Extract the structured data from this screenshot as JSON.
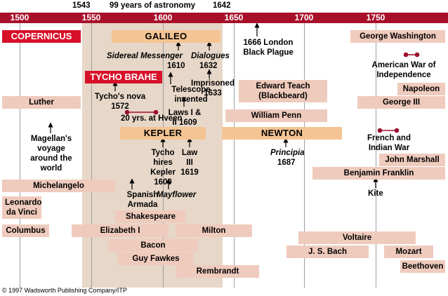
{
  "header": {
    "years": [
      "1500",
      "1550",
      "1600",
      "1650",
      "1700",
      "1750"
    ],
    "span_start": "1543",
    "span_label": "99 years of astronomy",
    "span_end": "1642"
  },
  "bars": {
    "copernicus": "COPERNICUS",
    "galileo": "GALILEO",
    "tycho_brahe": "TYCHO BRAHE",
    "kepler": "KEPLER",
    "newton": "NEWTON",
    "george_washington": "George Washington",
    "luther": "Luther",
    "edward_teach": "Edward Teach (Blackbeard)",
    "napoleon": "Napoleon",
    "george_iii": "George III",
    "william_penn": "William Penn",
    "john_marshall": "John Marshall",
    "benjamin_franklin": "Benjamin Franklin",
    "michelangelo": "Michelangelo",
    "leonardo": "Leonardo da Vinci",
    "shakespeare": "Shakespeare",
    "columbus": "Columbus",
    "elizabeth": "Elizabeth I",
    "milton": "Milton",
    "voltaire": "Voltaire",
    "bacon": "Bacon",
    "bach": "J. S. Bach",
    "mozart": "Mozart",
    "guy_fawkes": "Guy Fawkes",
    "beethoven": "Beethoven",
    "rembrandt": "Rembrandt"
  },
  "events": {
    "london": "1666 London Black Plague",
    "sidereal": "Sidereal Messenger",
    "sidereal_year": "1610",
    "dialogues": "Dialogues",
    "dialogues_year": "1632",
    "american_war": "American War of Independence",
    "telescope": "Telescope invented",
    "imprisoned": "Imprisoned 1633",
    "tycho_nova": "Tycho's nova 1572",
    "twenty_yrs": "20 yrs. at Hveen",
    "laws": "Laws I & II 1609",
    "french_indian": "French and Indian War",
    "magellan": "Magellan's voyage around the world",
    "principia": "Principia",
    "principia_year": "1687",
    "tycho_hires": "Tycho hires Kepler 1600",
    "law3": "Law III 1619",
    "kite": "Kite",
    "armada": "Spanish Armada",
    "mayflower": "Mayflower"
  },
  "copyright": "© 1997 Wadsworth Publishing Company/ITP",
  "colors": {
    "header": "#a8102a",
    "shade": "#e7d7c8",
    "bar": "#efcbbd",
    "highlight_bar": "#f5c494",
    "red_bar": "#d7102a",
    "marker": "#9b1030"
  }
}
